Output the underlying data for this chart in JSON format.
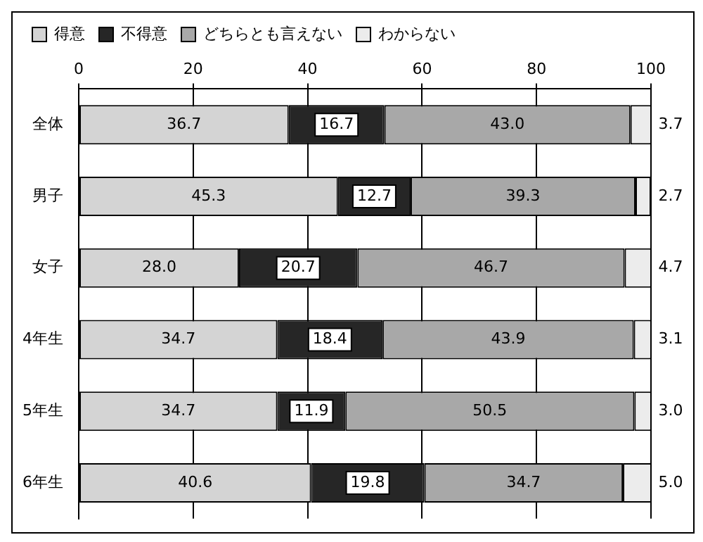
{
  "chart_data": {
    "type": "bar",
    "orientation": "horizontal",
    "stacked": true,
    "categories": [
      "全体",
      "男子",
      "女子",
      "4年生",
      "5年生",
      "6年生"
    ],
    "series": [
      {
        "name": "得意",
        "color": "#d4d4d4",
        "values": [
          36.7,
          45.3,
          28.0,
          34.7,
          34.7,
          40.6
        ],
        "value_labels": [
          "36.7",
          "45.3",
          "28.0",
          "34.7",
          "34.7",
          "40.6"
        ]
      },
      {
        "name": "不得意",
        "color": "#262626",
        "values": [
          16.7,
          12.7,
          20.7,
          18.4,
          11.9,
          19.8
        ],
        "value_labels": [
          "16.7",
          "12.7",
          "20.7",
          "18.4",
          "11.9",
          "19.8"
        ]
      },
      {
        "name": "どちらとも言えない",
        "color": "#a8a8a8",
        "values": [
          43.0,
          39.3,
          46.7,
          43.9,
          50.5,
          34.7
        ],
        "value_labels": [
          "43.0",
          "39.3",
          "46.7",
          "43.9",
          "50.5",
          "34.7"
        ]
      },
      {
        "name": "わからない",
        "color": "#ececec",
        "values": [
          3.7,
          2.7,
          4.7,
          3.1,
          3.0,
          5.0
        ],
        "value_labels": [
          "3.7",
          "2.7",
          "4.7",
          "3.1",
          "3.0",
          "5.0"
        ]
      }
    ],
    "xlim": [
      0,
      100
    ],
    "xticks": [
      0,
      20,
      40,
      60,
      80,
      100
    ],
    "grid": "x",
    "legend": "top left"
  }
}
